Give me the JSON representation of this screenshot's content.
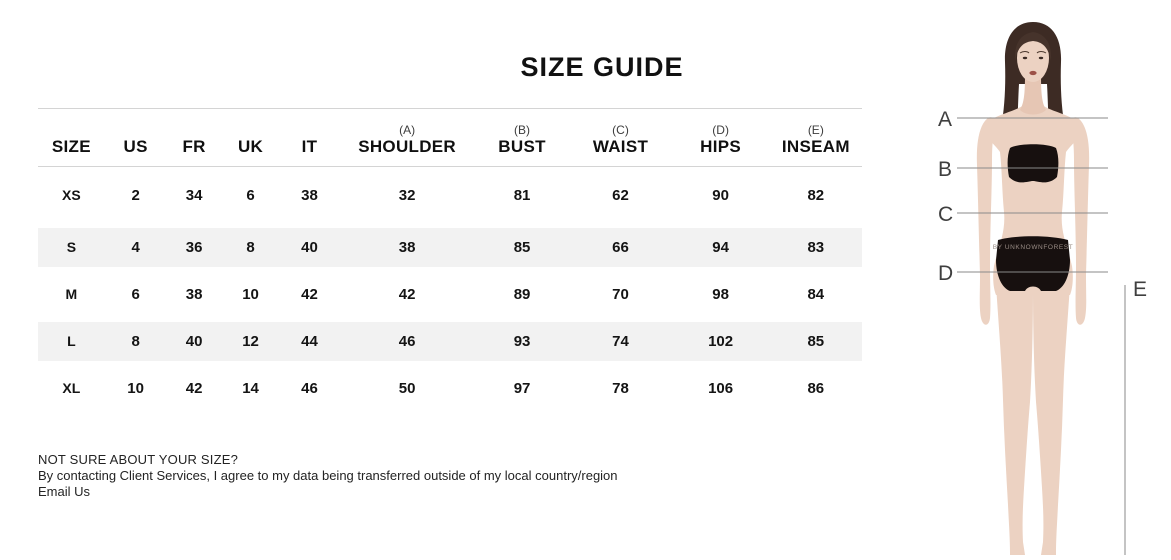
{
  "title": "SIZE GUIDE",
  "table": {
    "columns": [
      {
        "sub": "",
        "label": "SIZE"
      },
      {
        "sub": "",
        "label": "US"
      },
      {
        "sub": "",
        "label": "FR"
      },
      {
        "sub": "",
        "label": "UK"
      },
      {
        "sub": "",
        "label": "IT"
      },
      {
        "sub": "(A)",
        "label": "SHOULDER"
      },
      {
        "sub": "(B)",
        "label": "BUST"
      },
      {
        "sub": "(C)",
        "label": "WAIST"
      },
      {
        "sub": "(D)",
        "label": "HIPS"
      },
      {
        "sub": "(E)",
        "label": "INSEAM"
      }
    ],
    "rows": [
      [
        "XS",
        "2",
        "34",
        "6",
        "38",
        "32",
        "81",
        "62",
        "90",
        "82"
      ],
      [
        "S",
        "4",
        "36",
        "8",
        "40",
        "38",
        "85",
        "66",
        "94",
        "83"
      ],
      [
        "M",
        "6",
        "38",
        "10",
        "42",
        "42",
        "89",
        "70",
        "98",
        "84"
      ],
      [
        "L",
        "8",
        "40",
        "12",
        "44",
        "46",
        "93",
        "74",
        "102",
        "85"
      ],
      [
        "XL",
        "10",
        "42",
        "14",
        "46",
        "50",
        "97",
        "78",
        "106",
        "86"
      ]
    ]
  },
  "footer": {
    "heading": "NOT SURE ABOUT YOUR SIZE?",
    "consent": "By contacting Client Services, I agree to my data being transferred outside of my local country/region",
    "email_link": "Email Us"
  },
  "figure": {
    "labels": {
      "shoulder": "A",
      "bust": "B",
      "waist": "C",
      "hips": "D",
      "inseam": "E"
    },
    "watermark": "BY UNKNOWNFOREST"
  },
  "colors": {
    "stripe": "#f2f2f2",
    "table_border": "#d4d4d4",
    "measure_line": "#8a8a8a",
    "skin": "#ecd2c2",
    "hair": "#3d2b24",
    "garment": "#17100f",
    "text": "#111111"
  }
}
